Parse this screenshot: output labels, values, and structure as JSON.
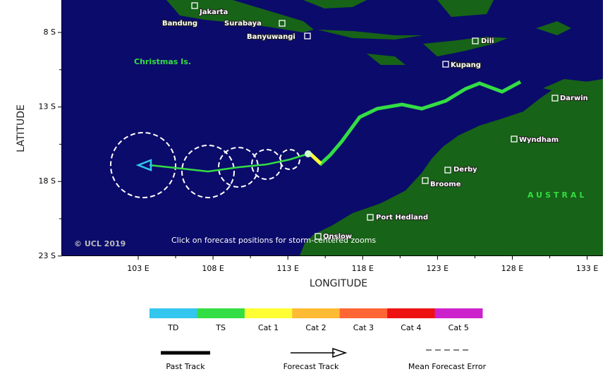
{
  "map": {
    "x_axis_title": "LONGITUDE",
    "y_axis_title": "LATITUDE",
    "x_ticks": [
      "103 E",
      "108 E",
      "113 E",
      "118 E",
      "123 E",
      "128 E",
      "133 E"
    ],
    "y_ticks": [
      "8 S",
      "13 S",
      "18 S",
      "23 S"
    ],
    "places": [
      "Jakarta",
      "Bandung",
      "Surabaya",
      "Banyuwangi",
      "Dili",
      "Kupang",
      "Darwin",
      "Wyndham",
      "Derby",
      "Broome",
      "Port Hedland",
      "Onslow",
      "Christmas Is."
    ],
    "region_label": "AUSTRAL",
    "copyright": "© UCL 2019",
    "instruction": "Click on forecast positions for storm-centered zooms"
  },
  "legend": {
    "categories": [
      "TD",
      "TS",
      "Cat 1",
      "Cat 2",
      "Cat 3",
      "Cat 4",
      "Cat 5"
    ],
    "colors": [
      "#33c6ee",
      "#33dd44",
      "#ffff33",
      "#ffbb33",
      "#ff6633",
      "#ee1111",
      "#cc22cc"
    ],
    "tracks": [
      "Past Track",
      "Forecast Track",
      "Mean Forecast Error"
    ]
  }
}
